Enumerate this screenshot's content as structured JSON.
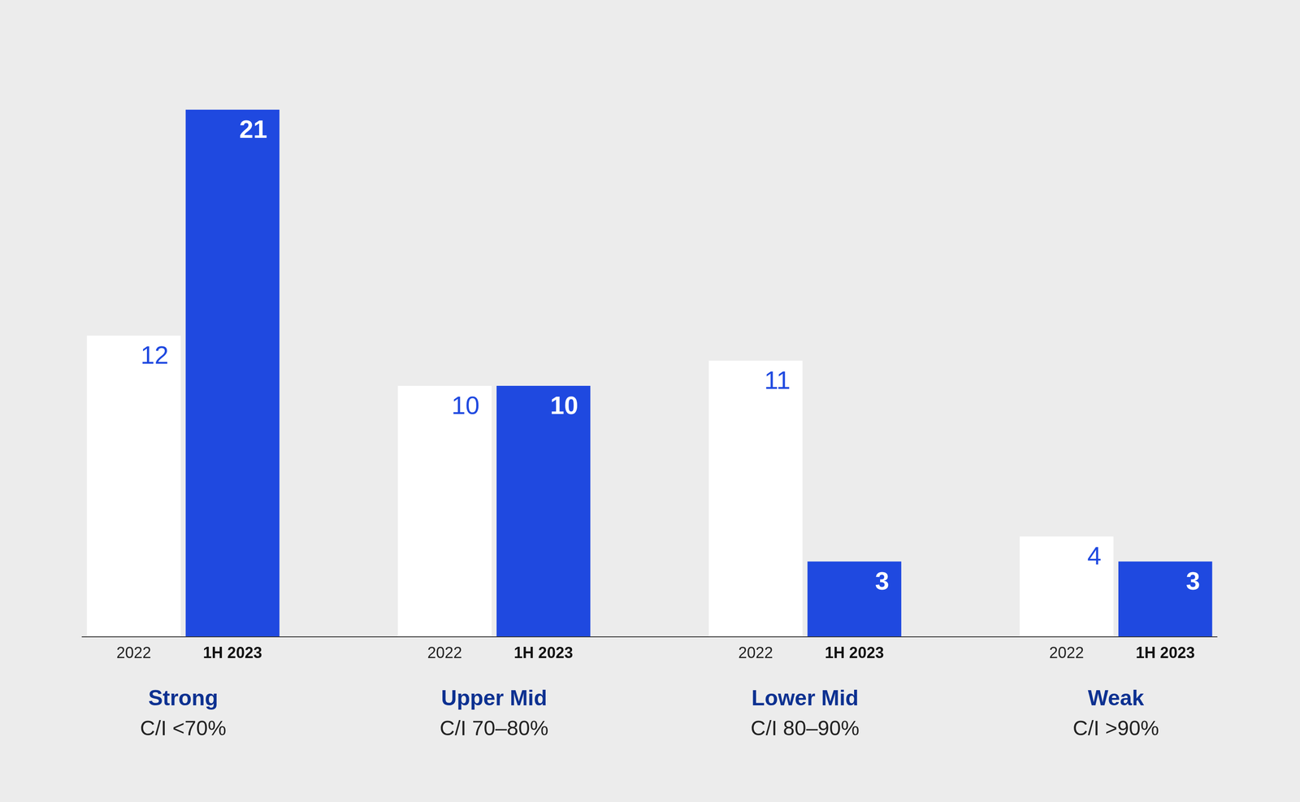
{
  "chart_data": {
    "type": "bar",
    "categories": [
      "Strong",
      "Upper Mid",
      "Lower Mid",
      "Weak"
    ],
    "category_notes": [
      "C/I <70%",
      "C/I 70–80%",
      "C/I 80–90%",
      "C/I >90%"
    ],
    "series": [
      {
        "name": "2022",
        "color": "#ffffff",
        "values": [
          12,
          10,
          11,
          4
        ]
      },
      {
        "name": "1H 2023",
        "color": "#1f49e0",
        "values": [
          21,
          10,
          3,
          3
        ]
      }
    ],
    "ylim": [
      0,
      21
    ],
    "grid": false,
    "data_labels": true,
    "tick_labels": "x"
  }
}
